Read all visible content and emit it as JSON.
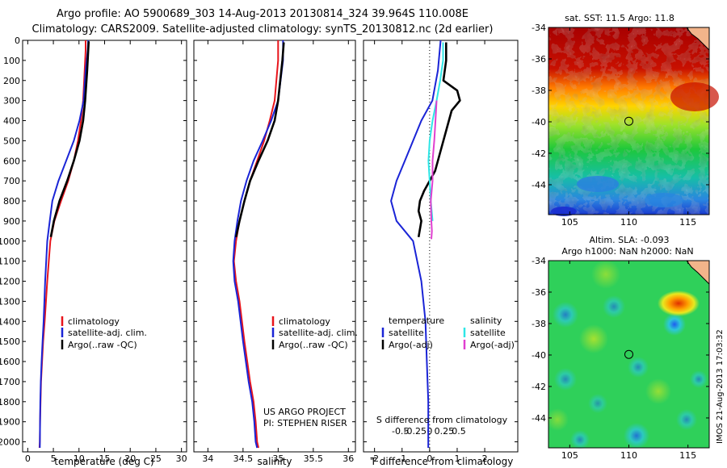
{
  "header": {
    "line1": "Argo profile: AO 5900689_303 14-Aug-2013 20130814_324 39.964S 110.008E",
    "line2": "Climatology: CARS2009. Satellite-adjusted climatology: synTS_20130812.nc (2d earlier)"
  },
  "colors": {
    "climatology": "#e8141b",
    "satellite": "#1a24d6",
    "argo": "#000000",
    "salinity_satellite": "#2ee6e6",
    "salinity_argo": "#e040d0"
  },
  "chart_data": [
    {
      "type": "line",
      "xlabel": "temperature (deg C)",
      "ylim": [
        2050,
        0
      ],
      "xlim": [
        -1,
        31
      ],
      "xticks": [
        "0",
        "5",
        "10",
        "15",
        "20",
        "25",
        "30"
      ],
      "yticks": [
        "0",
        "100",
        "200",
        "300",
        "400",
        "500",
        "600",
        "700",
        "800",
        "900",
        "1000",
        "1100",
        "1200",
        "1300",
        "1400",
        "1500",
        "1600",
        "1700",
        "1800",
        "1900",
        "2000"
      ],
      "legend": [
        "climatology",
        "satellite-adj. clim.",
        "Argo(..raw -QC)"
      ],
      "series": [
        {
          "name": "climatology",
          "x": [
            11.3,
            11.3,
            11.1,
            10.8,
            10.4,
            9.8,
            9.0,
            7.9,
            6.5,
            5.2,
            4.4,
            3.8,
            3.3,
            3.0,
            2.8,
            2.6,
            2.5,
            2.4,
            2.35,
            2.3
          ],
          "y": [
            0,
            50,
            150,
            300,
            400,
            500,
            600,
            700,
            800,
            900,
            1000,
            1200,
            1400,
            1500,
            1600,
            1700,
            1800,
            1900,
            2000,
            2030
          ]
        },
        {
          "name": "satellite-adj. clim.",
          "x": [
            11.8,
            11.7,
            11.3,
            10.9,
            10.1,
            9.0,
            7.5,
            6.0,
            4.8,
            4.3,
            3.8,
            3.4,
            3.1,
            2.9,
            2.7,
            2.55,
            2.45,
            2.4,
            2.35
          ],
          "y": [
            0,
            50,
            150,
            300,
            400,
            500,
            600,
            700,
            800,
            900,
            1000,
            1200,
            1400,
            1500,
            1600,
            1700,
            1800,
            1900,
            2030
          ]
        },
        {
          "name": "Argo(..raw -QC)",
          "x": [
            11.9,
            11.8,
            11.6,
            11.2,
            10.8,
            10.1,
            9.0,
            7.7,
            6.2,
            5.1,
            4.5
          ],
          "y": [
            5,
            50,
            150,
            300,
            400,
            500,
            600,
            700,
            800,
            900,
            980
          ]
        }
      ]
    },
    {
      "type": "line",
      "xlabel": "salinity",
      "ylim": [
        2050,
        0
      ],
      "xlim": [
        33.8,
        36.1
      ],
      "xticks": [
        "34",
        "34.5",
        "35",
        "35.5",
        "36"
      ],
      "legend": [
        "climatology",
        "satellite-adj. clim.",
        "Argo(..raw -QC)"
      ],
      "annotations": [
        "US ARGO PROJECT",
        "PI: STEPHEN RISER"
      ],
      "series": [
        {
          "name": "climatology",
          "x": [
            35.0,
            35.0,
            34.95,
            34.88,
            34.8,
            34.7,
            34.6,
            34.52,
            34.45,
            34.4,
            34.37,
            34.4,
            34.45,
            34.52,
            34.6,
            34.65,
            34.68,
            34.7,
            34.72
          ],
          "y": [
            0,
            100,
            300,
            400,
            500,
            600,
            700,
            800,
            900,
            1000,
            1100,
            1200,
            1300,
            1500,
            1700,
            1800,
            1900,
            2000,
            2030
          ]
        },
        {
          "name": "satellite-adj. clim.",
          "x": [
            35.07,
            35.07,
            35.0,
            34.9,
            34.78,
            34.65,
            34.55,
            34.47,
            34.42,
            34.38,
            34.36,
            34.38,
            34.43,
            34.5,
            34.58,
            34.63,
            34.66,
            34.68,
            34.7
          ],
          "y": [
            0,
            100,
            300,
            400,
            500,
            600,
            700,
            800,
            900,
            1000,
            1100,
            1200,
            1300,
            1500,
            1700,
            1800,
            1900,
            2000,
            2030
          ]
        },
        {
          "name": "Argo(..raw -QC)",
          "x": [
            35.08,
            35.06,
            35.0,
            34.95,
            34.85,
            34.72,
            34.6,
            34.52,
            34.45,
            34.4
          ],
          "y": [
            10,
            100,
            300,
            400,
            500,
            600,
            700,
            800,
            900,
            980
          ]
        }
      ]
    },
    {
      "type": "line",
      "xlabel": "T difference from climatology",
      "x2label": "S difference from climatology",
      "ylim": [
        2050,
        0
      ],
      "xlim": [
        -2.4,
        3.2
      ],
      "xticks": [
        "-2",
        "-1",
        "0",
        "1",
        "2"
      ],
      "x2ticks": [
        "-0.5",
        "-0.25",
        "0",
        "0.25",
        "0.5"
      ],
      "legend_groups": [
        {
          "title": "temperature",
          "items": [
            "satellite",
            "Argo(-adj)"
          ]
        },
        {
          "title": "salinity",
          "items": [
            "satellite",
            "Argo(-adj)"
          ]
        }
      ],
      "series": [
        {
          "name": "temperature satellite",
          "x": [
            0.4,
            0.3,
            0.1,
            -0.3,
            -0.6,
            -0.9,
            -1.2,
            -1.4,
            -1.2,
            -0.6,
            -0.3,
            -0.15,
            -0.1,
            -0.05,
            -0.05
          ],
          "y": [
            0,
            150,
            300,
            400,
            500,
            600,
            700,
            800,
            900,
            1000,
            1200,
            1400,
            1600,
            1800,
            2030
          ]
        },
        {
          "name": "temperature Argo(-adj)",
          "x": [
            0.6,
            0.6,
            0.5,
            1.0,
            1.1,
            0.8,
            0.6,
            0.4,
            0.2,
            0.0,
            -0.2,
            -0.35,
            -0.4,
            -0.3,
            -0.4
          ],
          "y": [
            10,
            100,
            200,
            250,
            300,
            350,
            450,
            550,
            650,
            700,
            750,
            800,
            850,
            900,
            980
          ]
        },
        {
          "name": "salinity satellite",
          "x": [
            0.23,
            0.23,
            0.18,
            0.12,
            0.05,
            0.0,
            -0.02,
            0.0,
            0.02,
            0.05
          ],
          "y": [
            10,
            100,
            200,
            300,
            400,
            500,
            600,
            700,
            800,
            900
          ]
        },
        {
          "name": "salinity Argo(-adj)",
          "x": [
            0.12,
            0.1,
            0.08,
            0.05,
            0.05,
            0.02,
            0.03,
            0.04,
            0.03
          ],
          "y": [
            300,
            400,
            500,
            600,
            700,
            800,
            900,
            950,
            990
          ]
        }
      ]
    }
  ],
  "maps": [
    {
      "title": "sat. SST: 11.5  Argo: 11.8",
      "lat_ticks": [
        "-34",
        "-36",
        "-38",
        "-40",
        "-42",
        "-44"
      ],
      "lon_ticks": [
        "105",
        "110",
        "115"
      ],
      "argo_position": {
        "lon": 110.0,
        "lat": -39.96
      }
    },
    {
      "title_line1": "Altim. SLA: -0.093",
      "title_line2": "Argo h1000: NaN h2000: NaN",
      "lat_ticks": [
        "-34",
        "-36",
        "-38",
        "-40",
        "-42",
        "-44"
      ],
      "lon_ticks": [
        "105",
        "110",
        "115"
      ],
      "argo_position": {
        "lon": 110.0,
        "lat": -39.96
      }
    }
  ],
  "credit": "IMOS 21-Aug-2013 17:03:32"
}
